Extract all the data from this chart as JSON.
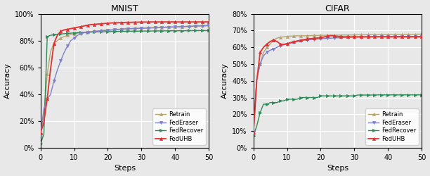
{
  "mnist": {
    "title": "MNIST",
    "xlabel": "Steps",
    "ylabel": "Accuracy",
    "ylim": [
      0.0,
      1.0
    ],
    "yticks": [
      0.0,
      0.2,
      0.4,
      0.6,
      0.8,
      1.0
    ],
    "xlim": [
      0,
      50
    ],
    "xticks": [
      0,
      10,
      20,
      30,
      40,
      50
    ],
    "retrain": {
      "label": "Retrain",
      "color": "#b5a570",
      "marker": "^",
      "markersize": 3,
      "markevery": 2,
      "lw": 1.0,
      "steps": [
        0,
        1,
        2,
        3,
        4,
        5,
        6,
        7,
        8,
        9,
        10,
        11,
        12,
        13,
        14,
        15,
        16,
        17,
        18,
        19,
        20,
        21,
        22,
        23,
        24,
        25,
        26,
        27,
        28,
        29,
        30,
        31,
        32,
        33,
        34,
        35,
        36,
        37,
        38,
        39,
        40,
        41,
        42,
        43,
        44,
        45,
        46,
        47,
        48,
        49,
        50
      ],
      "values": [
        0.1,
        0.25,
        0.55,
        0.72,
        0.78,
        0.8,
        0.82,
        0.83,
        0.84,
        0.845,
        0.85,
        0.855,
        0.858,
        0.862,
        0.865,
        0.868,
        0.87,
        0.873,
        0.875,
        0.877,
        0.879,
        0.881,
        0.883,
        0.885,
        0.887,
        0.889,
        0.89,
        0.891,
        0.892,
        0.893,
        0.894,
        0.895,
        0.896,
        0.897,
        0.898,
        0.899,
        0.9,
        0.901,
        0.902,
        0.903,
        0.904,
        0.905,
        0.906,
        0.907,
        0.908,
        0.909,
        0.91,
        0.912,
        0.913,
        0.914,
        0.915
      ]
    },
    "federaser": {
      "label": "FedEraser",
      "color": "#8080c8",
      "marker": "v",
      "markersize": 3,
      "markevery": 2,
      "lw": 1.0,
      "steps": [
        0,
        1,
        2,
        3,
        4,
        5,
        6,
        7,
        8,
        9,
        10,
        11,
        12,
        13,
        14,
        15,
        16,
        17,
        18,
        19,
        20,
        21,
        22,
        23,
        24,
        25,
        26,
        27,
        28,
        29,
        30,
        31,
        32,
        33,
        34,
        35,
        36,
        37,
        38,
        39,
        40,
        41,
        42,
        43,
        44,
        45,
        46,
        47,
        48,
        49,
        50
      ],
      "values": [
        0.1,
        0.29,
        0.36,
        0.4,
        0.5,
        0.58,
        0.65,
        0.71,
        0.76,
        0.8,
        0.82,
        0.84,
        0.85,
        0.86,
        0.86,
        0.865,
        0.868,
        0.871,
        0.873,
        0.875,
        0.877,
        0.879,
        0.881,
        0.883,
        0.885,
        0.887,
        0.888,
        0.889,
        0.89,
        0.891,
        0.892,
        0.893,
        0.894,
        0.895,
        0.896,
        0.897,
        0.898,
        0.899,
        0.9,
        0.901,
        0.902,
        0.903,
        0.904,
        0.905,
        0.906,
        0.907,
        0.908,
        0.909,
        0.91,
        0.911,
        0.912
      ]
    },
    "fedrecover": {
      "label": "FedRecover",
      "color": "#2e8b57",
      "marker": ">",
      "markersize": 3,
      "markevery": 2,
      "lw": 1.0,
      "steps": [
        0,
        1,
        2,
        3,
        4,
        5,
        6,
        7,
        8,
        9,
        10,
        11,
        12,
        13,
        14,
        15,
        16,
        17,
        18,
        19,
        20,
        21,
        22,
        23,
        24,
        25,
        26,
        27,
        28,
        29,
        30,
        31,
        32,
        33,
        34,
        35,
        36,
        37,
        38,
        39,
        40,
        41,
        42,
        43,
        44,
        45,
        46,
        47,
        48,
        49,
        50
      ],
      "values": [
        0.03,
        0.1,
        0.83,
        0.84,
        0.845,
        0.848,
        0.85,
        0.852,
        0.854,
        0.856,
        0.858,
        0.86,
        0.861,
        0.862,
        0.863,
        0.864,
        0.865,
        0.866,
        0.867,
        0.867,
        0.868,
        0.868,
        0.869,
        0.869,
        0.87,
        0.87,
        0.87,
        0.871,
        0.871,
        0.871,
        0.872,
        0.872,
        0.872,
        0.872,
        0.873,
        0.873,
        0.873,
        0.873,
        0.873,
        0.874,
        0.874,
        0.874,
        0.874,
        0.874,
        0.875,
        0.875,
        0.875,
        0.875,
        0.875,
        0.875,
        0.876
      ]
    },
    "feduhb": {
      "label": "FedUHB",
      "color": "#e03030",
      "marker": "^",
      "markersize": 3,
      "markevery": 2,
      "lw": 1.3,
      "steps": [
        0,
        1,
        2,
        3,
        4,
        5,
        6,
        7,
        8,
        9,
        10,
        11,
        12,
        13,
        14,
        15,
        16,
        17,
        18,
        19,
        20,
        21,
        22,
        23,
        24,
        25,
        26,
        27,
        28,
        29,
        30,
        31,
        32,
        33,
        34,
        35,
        36,
        37,
        38,
        39,
        40,
        41,
        42,
        43,
        44,
        45,
        46,
        47,
        48,
        49,
        50
      ],
      "values": [
        0.11,
        0.19,
        0.37,
        0.59,
        0.78,
        0.84,
        0.87,
        0.88,
        0.885,
        0.89,
        0.895,
        0.9,
        0.905,
        0.91,
        0.915,
        0.92,
        0.922,
        0.924,
        0.926,
        0.928,
        0.93,
        0.932,
        0.933,
        0.934,
        0.935,
        0.936,
        0.937,
        0.937,
        0.938,
        0.938,
        0.939,
        0.939,
        0.939,
        0.94,
        0.94,
        0.94,
        0.94,
        0.94,
        0.94,
        0.94,
        0.94,
        0.94,
        0.94,
        0.94,
        0.94,
        0.94,
        0.94,
        0.94,
        0.94,
        0.94,
        0.94
      ]
    }
  },
  "cifar": {
    "title": "CIFAR",
    "xlabel": "Steps",
    "ylabel": "Accuracy",
    "ylim": [
      0.0,
      0.8
    ],
    "yticks": [
      0.0,
      0.1,
      0.2,
      0.3,
      0.4,
      0.5,
      0.6,
      0.7,
      0.8
    ],
    "xlim": [
      0,
      50
    ],
    "xticks": [
      0,
      10,
      20,
      30,
      40,
      50
    ],
    "retrain": {
      "label": "Retrain",
      "color": "#b5a570",
      "marker": "^",
      "markersize": 3,
      "markevery": 2,
      "lw": 1.0,
      "steps": [
        0,
        1,
        2,
        3,
        4,
        5,
        6,
        7,
        8,
        9,
        10,
        11,
        12,
        13,
        14,
        15,
        16,
        17,
        18,
        19,
        20,
        21,
        22,
        23,
        24,
        25,
        26,
        27,
        28,
        29,
        30,
        31,
        32,
        33,
        34,
        35,
        36,
        37,
        38,
        39,
        40,
        41,
        42,
        43,
        44,
        45,
        46,
        47,
        48,
        49,
        50
      ],
      "values": [
        0.08,
        0.41,
        0.5,
        0.57,
        0.6,
        0.62,
        0.645,
        0.655,
        0.66,
        0.663,
        0.665,
        0.667,
        0.668,
        0.669,
        0.669,
        0.669,
        0.67,
        0.67,
        0.671,
        0.671,
        0.672,
        0.672,
        0.673,
        0.673,
        0.673,
        0.673,
        0.673,
        0.674,
        0.674,
        0.674,
        0.675,
        0.675,
        0.675,
        0.675,
        0.676,
        0.676,
        0.676,
        0.677,
        0.677,
        0.677,
        0.677,
        0.677,
        0.677,
        0.677,
        0.678,
        0.678,
        0.678,
        0.678,
        0.678,
        0.679,
        0.679
      ]
    },
    "federaser": {
      "label": "FedEraser",
      "color": "#8080c8",
      "marker": "v",
      "markersize": 3,
      "markevery": 2,
      "lw": 1.0,
      "steps": [
        0,
        1,
        2,
        3,
        4,
        5,
        6,
        7,
        8,
        9,
        10,
        11,
        12,
        13,
        14,
        15,
        16,
        17,
        18,
        19,
        20,
        21,
        22,
        23,
        24,
        25,
        26,
        27,
        28,
        29,
        30,
        31,
        32,
        33,
        34,
        35,
        36,
        37,
        38,
        39,
        40,
        41,
        42,
        43,
        44,
        45,
        46,
        47,
        48,
        49,
        50
      ],
      "values": [
        0.09,
        0.41,
        0.5,
        0.55,
        0.57,
        0.583,
        0.59,
        0.6,
        0.61,
        0.615,
        0.62,
        0.625,
        0.63,
        0.635,
        0.64,
        0.642,
        0.644,
        0.646,
        0.648,
        0.65,
        0.652,
        0.653,
        0.654,
        0.655,
        0.656,
        0.657,
        0.658,
        0.659,
        0.66,
        0.66,
        0.661,
        0.661,
        0.662,
        0.662,
        0.663,
        0.663,
        0.663,
        0.664,
        0.664,
        0.664,
        0.664,
        0.664,
        0.664,
        0.665,
        0.665,
        0.665,
        0.665,
        0.665,
        0.665,
        0.665,
        0.665
      ]
    },
    "fedrecover": {
      "label": "FedRecover",
      "color": "#2e8b57",
      "marker": ">",
      "markersize": 3,
      "markevery": 2,
      "lw": 1.0,
      "steps": [
        0,
        1,
        2,
        3,
        4,
        5,
        6,
        7,
        8,
        9,
        10,
        11,
        12,
        13,
        14,
        15,
        16,
        17,
        18,
        19,
        20,
        21,
        22,
        23,
        24,
        25,
        26,
        27,
        28,
        29,
        30,
        31,
        32,
        33,
        34,
        35,
        36,
        37,
        38,
        39,
        40,
        41,
        42,
        43,
        44,
        45,
        46,
        47,
        48,
        49,
        50
      ],
      "values": [
        0.07,
        0.13,
        0.21,
        0.26,
        0.26,
        0.27,
        0.27,
        0.27,
        0.28,
        0.28,
        0.29,
        0.29,
        0.29,
        0.29,
        0.3,
        0.3,
        0.3,
        0.3,
        0.3,
        0.3,
        0.31,
        0.31,
        0.31,
        0.31,
        0.31,
        0.31,
        0.31,
        0.31,
        0.31,
        0.31,
        0.31,
        0.315,
        0.315,
        0.315,
        0.315,
        0.315,
        0.315,
        0.316,
        0.316,
        0.316,
        0.316,
        0.316,
        0.316,
        0.316,
        0.316,
        0.316,
        0.316,
        0.316,
        0.316,
        0.316,
        0.316
      ]
    },
    "feduhb": {
      "label": "FedUHB",
      "color": "#e03030",
      "marker": "^",
      "markersize": 3,
      "markevery": 2,
      "lw": 1.3,
      "steps": [
        0,
        1,
        2,
        3,
        4,
        5,
        6,
        7,
        8,
        9,
        10,
        11,
        12,
        13,
        14,
        15,
        16,
        17,
        18,
        19,
        20,
        21,
        22,
        23,
        24,
        25,
        26,
        27,
        28,
        29,
        30,
        31,
        32,
        33,
        34,
        35,
        36,
        37,
        38,
        39,
        40,
        41,
        42,
        43,
        44,
        45,
        46,
        47,
        48,
        49,
        50
      ],
      "values": [
        0.09,
        0.4,
        0.57,
        0.6,
        0.62,
        0.635,
        0.645,
        0.635,
        0.62,
        0.618,
        0.622,
        0.628,
        0.633,
        0.638,
        0.642,
        0.646,
        0.65,
        0.652,
        0.654,
        0.656,
        0.658,
        0.662,
        0.667,
        0.67,
        0.668,
        0.666,
        0.664,
        0.663,
        0.663,
        0.663,
        0.663,
        0.663,
        0.663,
        0.663,
        0.663,
        0.663,
        0.663,
        0.663,
        0.663,
        0.663,
        0.663,
        0.663,
        0.663,
        0.663,
        0.663,
        0.663,
        0.663,
        0.663,
        0.663,
        0.663,
        0.663
      ]
    }
  },
  "background_color": "#e8e8e8"
}
